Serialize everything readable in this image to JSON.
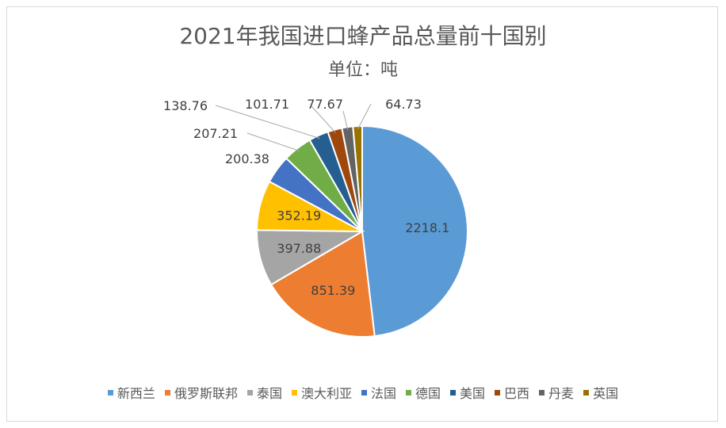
{
  "chart_data": {
    "type": "pie",
    "title": "2021年我国进口蜂产品总量前十国别",
    "subtitle": "单位：吨",
    "legend_position": "bottom",
    "categories": [
      "新西兰",
      "俄罗斯联邦",
      "泰国",
      "澳大利亚",
      "法国",
      "德国",
      "美国",
      "巴西",
      "丹麦",
      "英国"
    ],
    "values": [
      2218.1,
      851.39,
      397.88,
      352.19,
      200.38,
      207.21,
      138.76,
      101.71,
      77.67,
      64.73
    ],
    "value_labels": [
      "2218.1",
      "851.39",
      "397.88",
      "352.19",
      "200.38",
      "207.21",
      "138.76",
      "101.71",
      "77.67",
      "64.73"
    ],
    "colors": [
      "#5b9bd5",
      "#ed7d31",
      "#a5a5a5",
      "#ffc000",
      "#4472c4",
      "#70ad47",
      "#255e91",
      "#9e480e",
      "#636363",
      "#997300"
    ]
  }
}
